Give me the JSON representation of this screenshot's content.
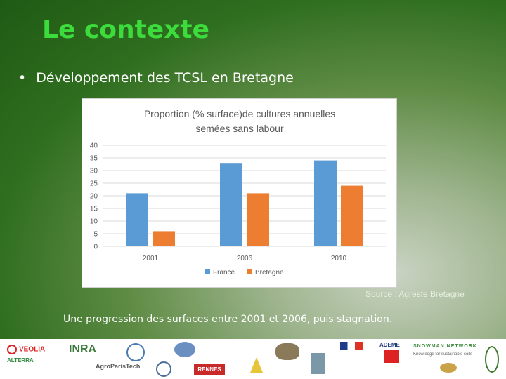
{
  "slide": {
    "title": "Le contexte",
    "bullet": "Développement des TCSL en Bretagne",
    "source": "Source : Agreste Bretagne",
    "caption": "Une progression des surfaces entre 2001 et 2006, puis stagnation."
  },
  "chart_data": {
    "type": "bar",
    "title_lines": [
      "Proportion (% surface)de cultures annuelles",
      "semées sans labour"
    ],
    "categories": [
      "2001",
      "2006",
      "2010"
    ],
    "series": [
      {
        "name": "France",
        "values": [
          21,
          33,
          34
        ],
        "color": "#5b9bd5"
      },
      {
        "name": "Bretagne",
        "values": [
          6,
          21,
          24
        ],
        "color": "#ed7d31"
      }
    ],
    "ylim": [
      0,
      40
    ],
    "yticks": [
      0,
      5,
      10,
      15,
      20,
      25,
      30,
      35,
      40
    ],
    "grid": true,
    "legend_position": "bottom"
  },
  "logos": {
    "veolia": "VEOLIA",
    "inra": "INRA",
    "alterra": "ALTERRA",
    "agroparistech": "AgroParisTech",
    "rennes": "RENNES",
    "ademe": "ADEME",
    "snowman": "SNOWMAN NETWORK",
    "snowman_tag": "Knowledge for sustainable soils"
  },
  "colors": {
    "title": "#3ddc3d",
    "france": "#5b9bd5",
    "bretagne": "#ed7d31"
  }
}
